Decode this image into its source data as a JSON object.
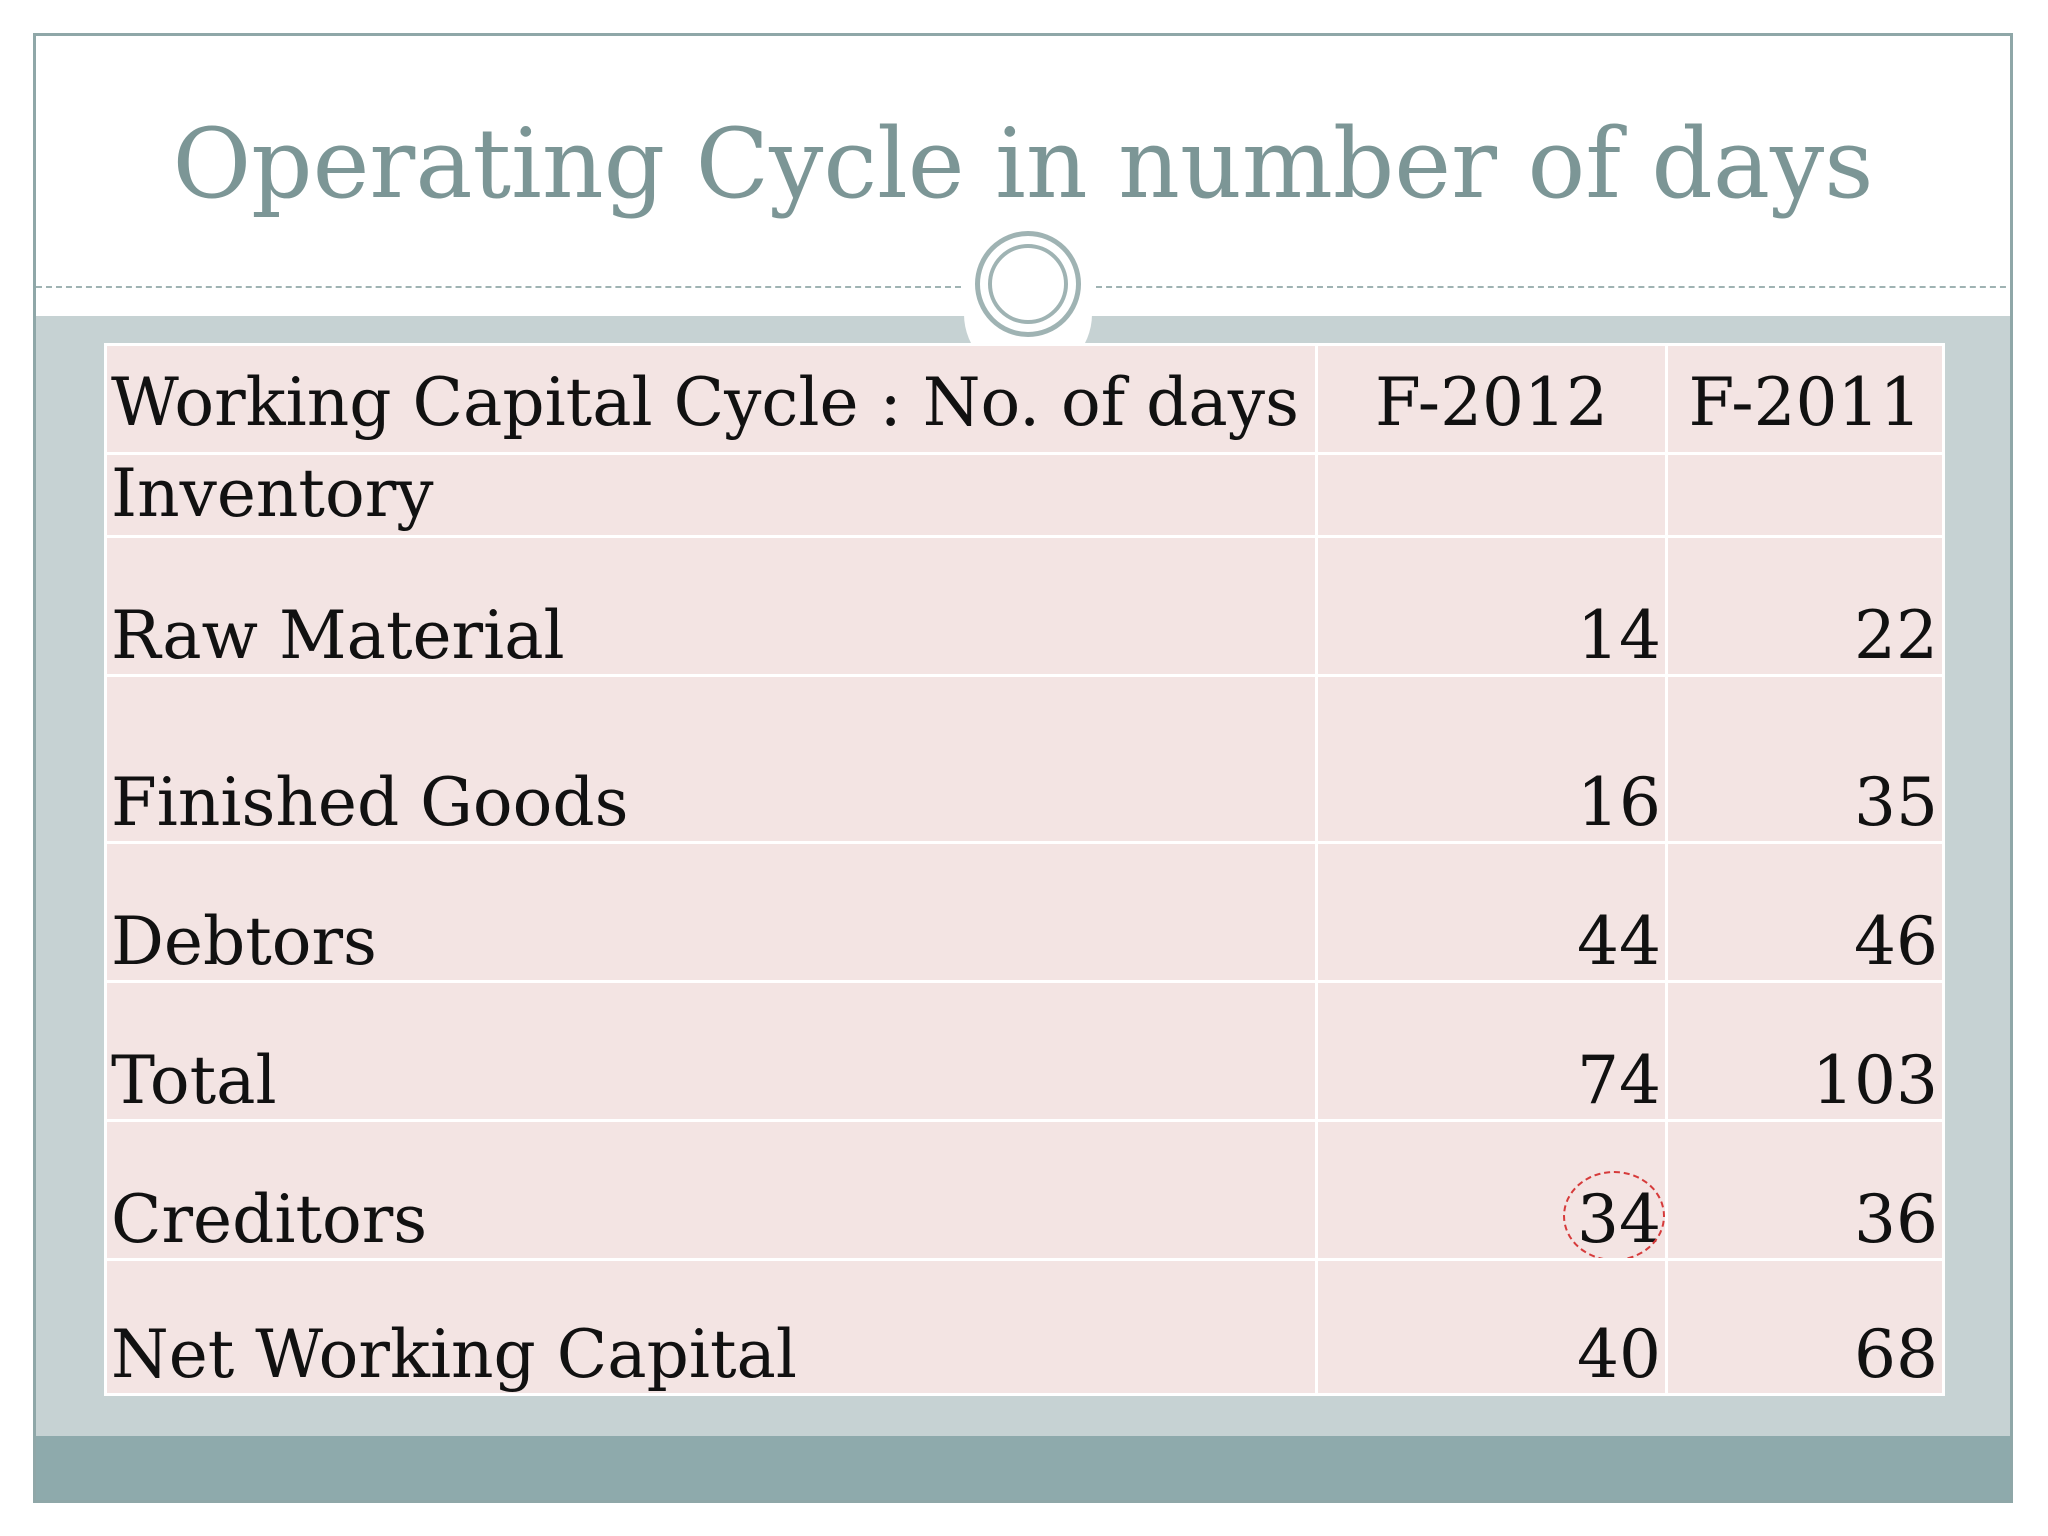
{
  "slide": {
    "title": "Operating Cycle in number of days"
  },
  "table": {
    "header": {
      "label": "Working Capital Cycle : No. of days",
      "col_a": "F-2012",
      "col_b": "F-2011"
    },
    "rows": [
      {
        "label": "Inventory",
        "a": "",
        "b": ""
      },
      {
        "label": "Raw Material",
        "a": "14",
        "b": "22"
      },
      {
        "label": "Finished Goods",
        "a": "16",
        "b": "35"
      },
      {
        "label": "Debtors",
        "a": "44",
        "b": "46"
      },
      {
        "label": "Total",
        "a": "74",
        "b": "103"
      },
      {
        "label": "Creditors",
        "a": "34",
        "b": "36"
      },
      {
        "label": "Net Working Capital",
        "a": "40",
        "b": "68"
      }
    ]
  },
  "annotations": {
    "circle_color": "#d63a3a"
  }
}
